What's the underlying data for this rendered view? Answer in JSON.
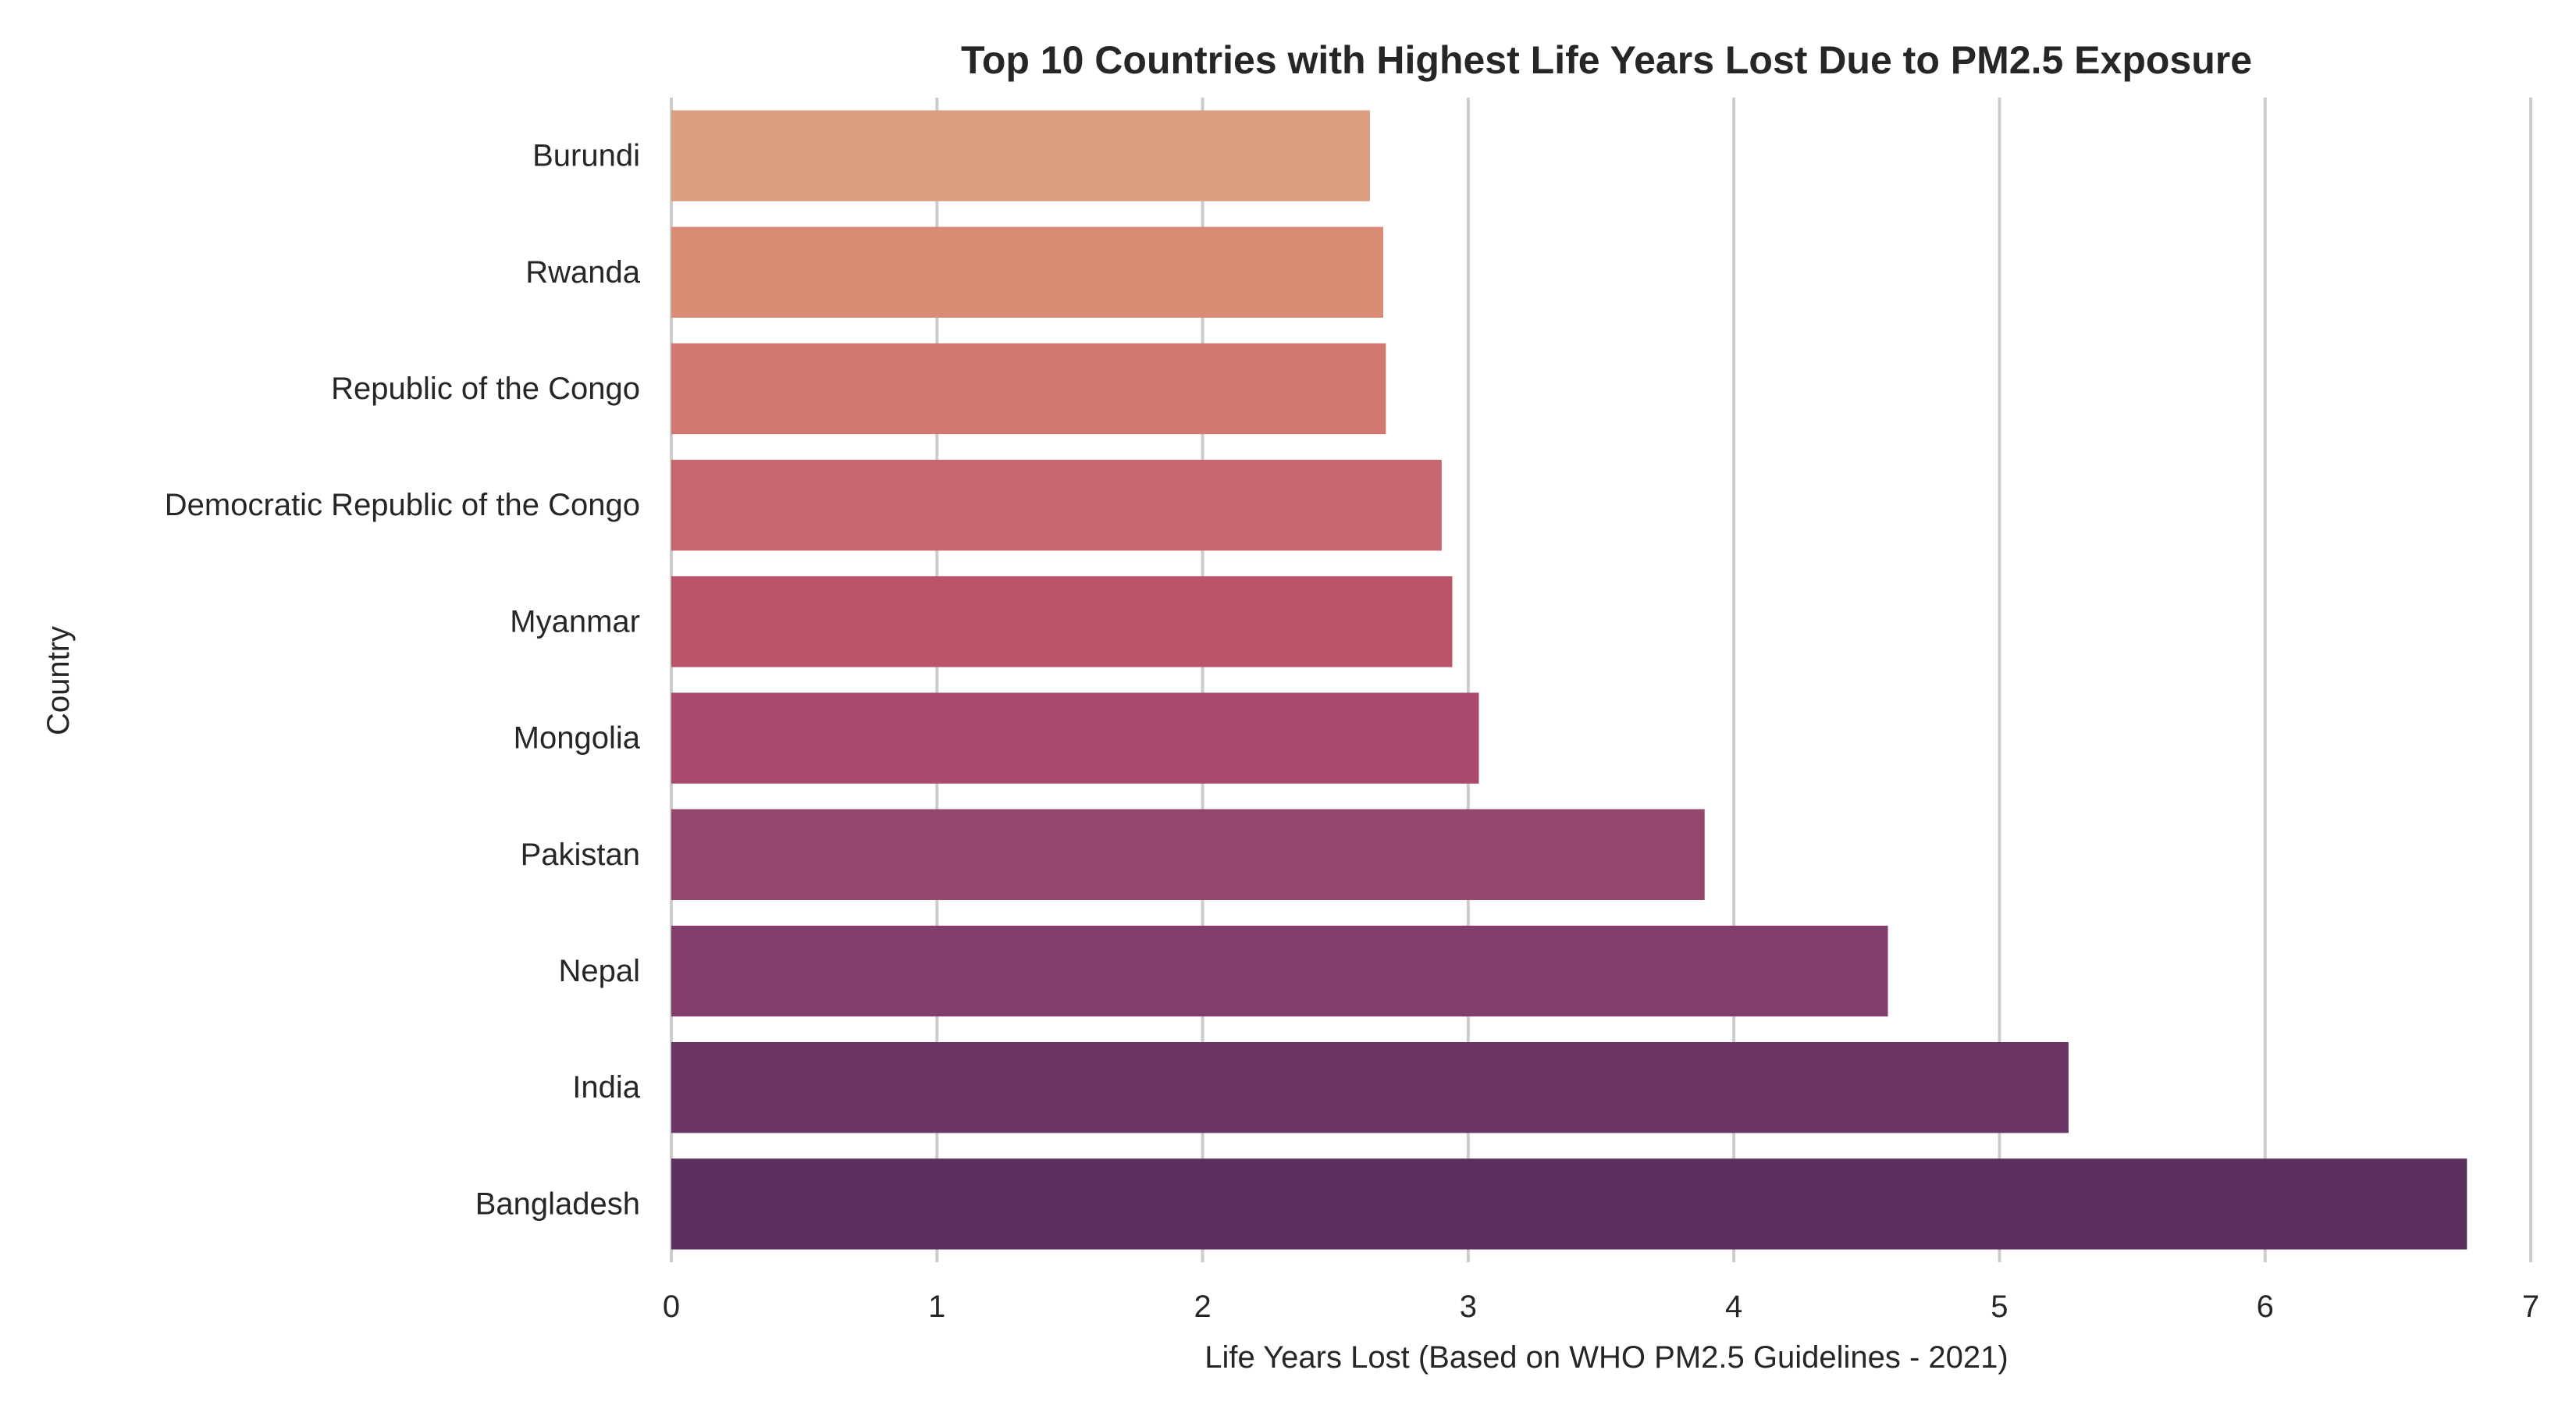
{
  "chart_data": {
    "type": "bar",
    "orientation": "horizontal",
    "title": "Top 10 Countries with Highest Life Years Lost Due to PM2.5 Exposure",
    "xlabel": "Life Years Lost (Based on WHO PM2.5 Guidelines - 2021)",
    "ylabel": "Country",
    "xlim": [
      0,
      7
    ],
    "xticks": [
      "0",
      "1",
      "2",
      "3",
      "4",
      "5",
      "6",
      "7"
    ],
    "grid": "vertical",
    "categories": [
      "Burundi",
      "Rwanda",
      "Republic of the Congo",
      "Democratic Republic of the Congo",
      "Myanmar",
      "Mongolia",
      "Pakistan",
      "Nepal",
      "India",
      "Bangladesh"
    ],
    "values": [
      2.63,
      2.68,
      2.69,
      2.9,
      2.94,
      3.04,
      3.89,
      4.58,
      5.26,
      6.76
    ],
    "colors": [
      "#dc9e81",
      "#d98b74",
      "#d17970",
      "#c8666d",
      "#bb536b",
      "#a84a6d",
      "#94466c",
      "#813e6b",
      "#6b3665",
      "#5b305e"
    ]
  }
}
